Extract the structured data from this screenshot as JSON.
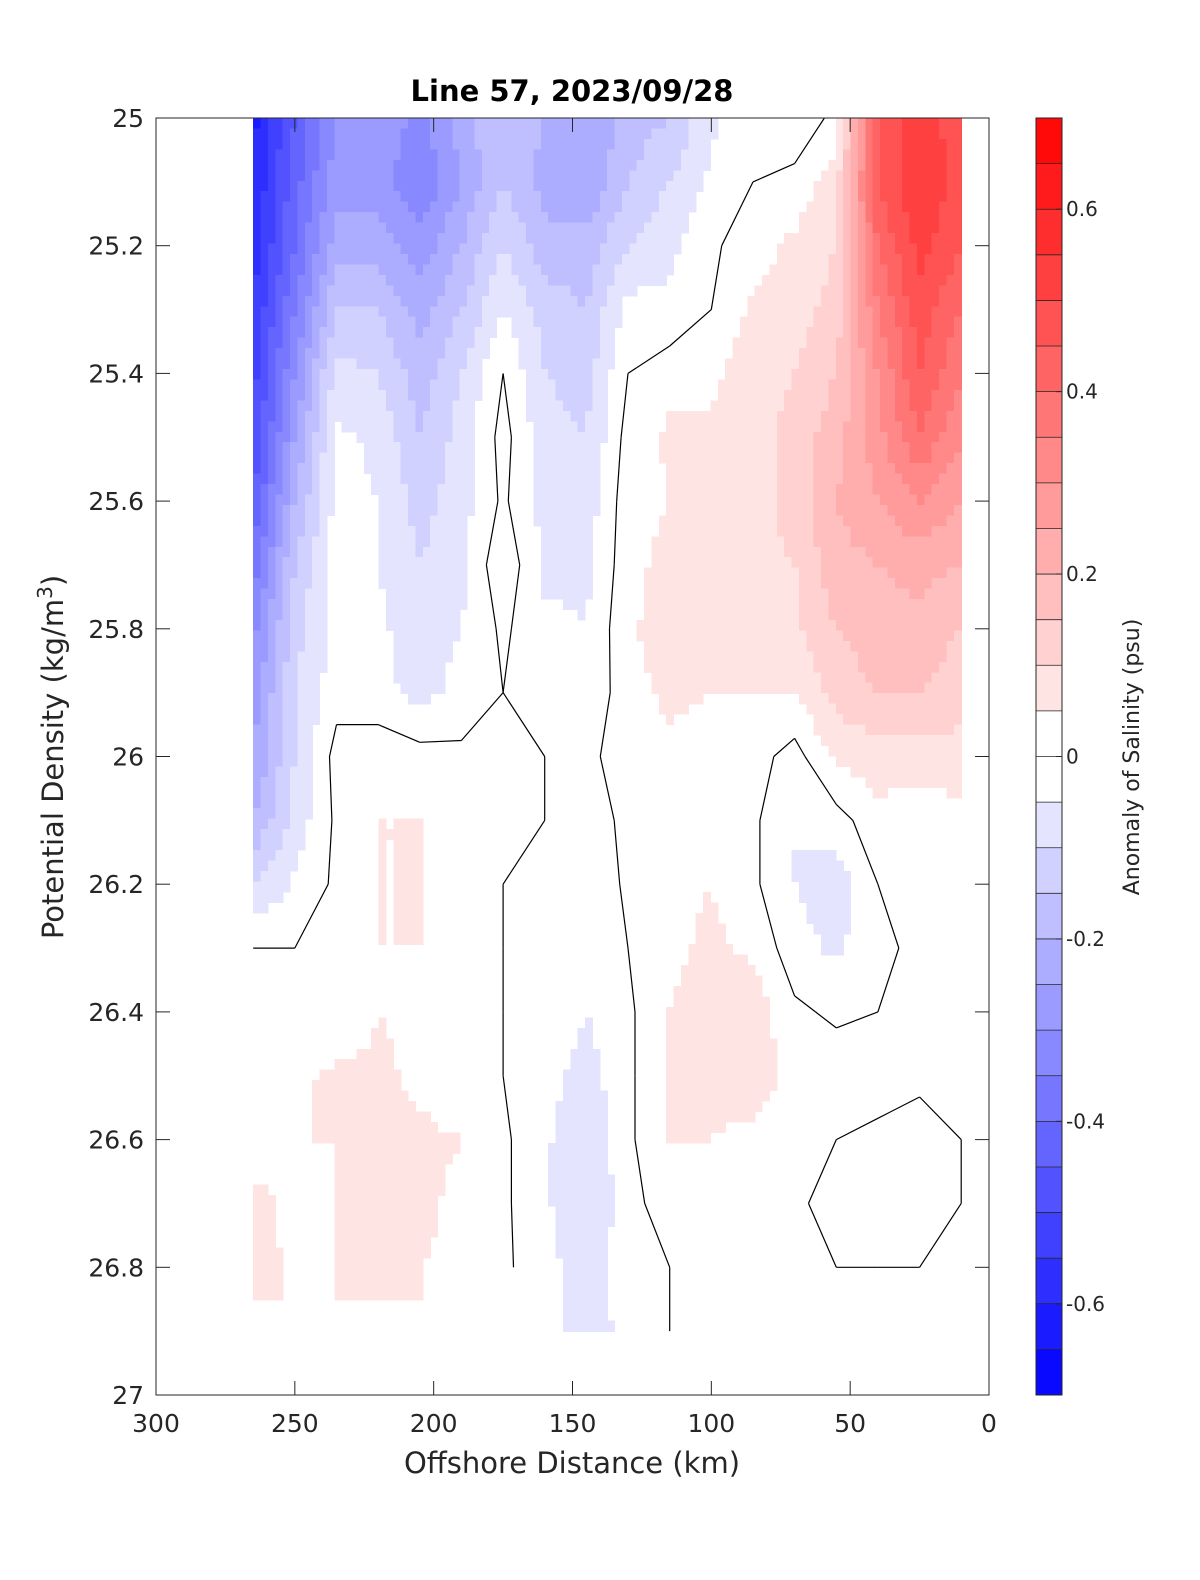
{
  "chart_data": {
    "type": "heatmap",
    "subtype": "filled-contour",
    "title": "Line 57, 2023/09/28",
    "xlabel": "Offshore Distance (km)",
    "ylabel": {
      "prefix": "Potential Density (kg/m",
      "sup": "3",
      "suffix": ")"
    },
    "xlim": [
      300,
      0
    ],
    "ylim": [
      27,
      25
    ],
    "y_reversed": true,
    "x_reversed": true,
    "xticks": [
      300,
      250,
      200,
      150,
      100,
      50,
      0
    ],
    "yticks": [
      25,
      25.2,
      25.4,
      25.6,
      25.8,
      26,
      26.2,
      26.4,
      26.6,
      26.8,
      27
    ],
    "xtick_labels": [
      "300",
      "250",
      "200",
      "150",
      "100",
      "50",
      "0"
    ],
    "ytick_labels": [
      "25",
      "25.2",
      "25.4",
      "25.6",
      "25.8",
      "26",
      "26.2",
      "26.4",
      "26.6",
      "26.8",
      "27"
    ],
    "colorbar": {
      "label": "Anomaly of Salinity (psu)",
      "range": [
        -0.7,
        0.7
      ],
      "step": 0.05,
      "ticks": [
        -0.6,
        -0.4,
        -0.2,
        0,
        0.2,
        0.4,
        0.6
      ],
      "tick_labels": [
        "-0.6",
        "-0.4",
        "-0.2",
        "0",
        "0.2",
        "0.4",
        "0.6"
      ],
      "negative_color": "#0000ff",
      "positive_color": "#ff0000",
      "neutral_color": "#ffffff"
    },
    "contour_line_level": 0,
    "grid": false,
    "x": [
      265,
      250,
      235,
      220,
      205,
      190,
      175,
      160,
      145,
      130,
      115,
      100,
      85,
      70,
      55,
      40,
      25,
      10
    ],
    "y": [
      25.0,
      25.1,
      25.2,
      25.3,
      25.4,
      25.5,
      25.6,
      25.7,
      25.8,
      25.9,
      26.0,
      26.1,
      26.2,
      26.3,
      26.4,
      26.5,
      26.6,
      26.7,
      26.8,
      26.9
    ],
    "z": [
      [
        -0.62,
        -0.45,
        -0.3,
        -0.25,
        -0.32,
        -0.22,
        -0.15,
        -0.2,
        -0.25,
        -0.18,
        -0.15,
        -0.06,
        -0.02,
        -0.05,
        0.02,
        0.45,
        0.55,
        0.45
      ],
      [
        -0.6,
        -0.42,
        -0.27,
        -0.28,
        -0.35,
        -0.25,
        -0.15,
        -0.22,
        -0.25,
        -0.15,
        -0.1,
        -0.04,
        0.0,
        0.02,
        0.08,
        0.45,
        0.55,
        0.48
      ],
      [
        -0.58,
        -0.4,
        -0.22,
        -0.22,
        -0.28,
        -0.2,
        -0.1,
        -0.18,
        -0.18,
        -0.1,
        -0.06,
        -0.01,
        0.03,
        0.06,
        0.1,
        0.4,
        0.52,
        0.45
      ],
      [
        -0.55,
        -0.35,
        -0.15,
        -0.15,
        -0.22,
        -0.15,
        -0.05,
        -0.12,
        -0.15,
        -0.03,
        -0.04,
        0.0,
        0.06,
        0.08,
        0.12,
        0.35,
        0.48,
        0.4
      ],
      [
        -0.52,
        -0.3,
        -0.08,
        -0.1,
        -0.18,
        -0.1,
        0.0,
        -0.1,
        -0.12,
        0.0,
        0.03,
        0.04,
        0.08,
        0.1,
        0.15,
        0.3,
        0.45,
        0.35
      ],
      [
        -0.5,
        -0.25,
        -0.04,
        -0.06,
        -0.15,
        -0.08,
        0.02,
        -0.08,
        -0.1,
        0.02,
        0.06,
        0.06,
        0.08,
        0.12,
        0.18,
        0.28,
        0.4,
        0.3
      ],
      [
        -0.45,
        -0.2,
        -0.03,
        -0.05,
        -0.12,
        -0.07,
        0.01,
        -0.07,
        -0.08,
        0.03,
        0.05,
        0.08,
        0.08,
        0.12,
        0.2,
        0.25,
        0.3,
        0.25
      ],
      [
        -0.38,
        -0.15,
        -0.02,
        -0.05,
        -0.1,
        -0.06,
        0.04,
        -0.06,
        -0.06,
        0.03,
        0.07,
        0.1,
        0.08,
        0.1,
        0.18,
        0.2,
        0.22,
        0.2
      ],
      [
        -0.32,
        -0.12,
        -0.03,
        -0.04,
        -0.08,
        -0.05,
        0.01,
        -0.04,
        -0.05,
        0.04,
        0.08,
        0.08,
        0.06,
        0.09,
        0.15,
        0.18,
        0.18,
        0.15
      ],
      [
        -0.28,
        -0.1,
        -0.02,
        -0.03,
        -0.07,
        -0.03,
        0.0,
        -0.02,
        -0.04,
        0.03,
        0.06,
        0.05,
        0.05,
        0.05,
        0.12,
        0.15,
        0.15,
        0.12
      ],
      [
        -0.25,
        -0.1,
        0.02,
        0.03,
        0.02,
        0.01,
        0.0,
        0.0,
        -0.01,
        0.02,
        0.04,
        0.03,
        0.02,
        -0.02,
        0.06,
        0.08,
        0.08,
        0.08
      ],
      [
        -0.2,
        -0.08,
        0.01,
        0.05,
        0.05,
        0.04,
        0.0,
        0.0,
        -0.02,
        0.01,
        0.04,
        0.04,
        0.01,
        -0.05,
        -0.02,
        0.03,
        0.02,
        0.03
      ],
      [
        -0.1,
        -0.04,
        0.01,
        0.05,
        0.05,
        0.04,
        0.0,
        -0.01,
        -0.04,
        0.01,
        0.04,
        0.05,
        0.01,
        -0.05,
        -0.08,
        0.0,
        0.02,
        0.03
      ],
      [
        0.0,
        0.0,
        0.01,
        0.05,
        0.05,
        0.03,
        0.0,
        -0.02,
        -0.05,
        0.0,
        0.04,
        0.06,
        0.04,
        -0.03,
        -0.06,
        -0.01,
        0.01,
        0.02
      ],
      [
        0.02,
        0.02,
        0.01,
        0.05,
        0.04,
        0.02,
        0.0,
        -0.02,
        -0.05,
        -0.01,
        0.05,
        0.07,
        0.08,
        0.01,
        -0.01,
        0.0,
        0.01,
        0.01
      ],
      [
        0.03,
        0.04,
        0.06,
        0.06,
        0.04,
        0.02,
        0.0,
        -0.03,
        -0.07,
        -0.01,
        0.05,
        0.06,
        0.07,
        0.04,
        0.03,
        0.02,
        0.01,
        0.01
      ],
      [
        0.03,
        0.05,
        0.05,
        0.06,
        0.06,
        0.05,
        0.01,
        -0.04,
        -0.1,
        -0.01,
        0.05,
        0.05,
        0.04,
        0.03,
        0.0,
        -0.01,
        -0.02,
        0.0
      ],
      [
        0.06,
        0.04,
        0.05,
        0.05,
        0.06,
        0.04,
        0.01,
        -0.04,
        -0.1,
        -0.02,
        0.03,
        0.04,
        0.02,
        0.01,
        -0.02,
        -0.02,
        -0.02,
        0.0
      ],
      [
        0.07,
        0.04,
        0.05,
        0.05,
        0.05,
        0.04,
        0.01,
        -0.03,
        -0.08,
        -0.02,
        0.0,
        0.02,
        0.03,
        0.02,
        0.0,
        0.0,
        0.0,
        0.0
      ],
      [
        null,
        null,
        null,
        null,
        null,
        null,
        null,
        -0.02,
        -0.08,
        -0.03,
        0.0,
        0.02,
        0.04,
        0.03,
        0.0,
        0.0,
        0.0,
        0.0
      ]
    ]
  }
}
